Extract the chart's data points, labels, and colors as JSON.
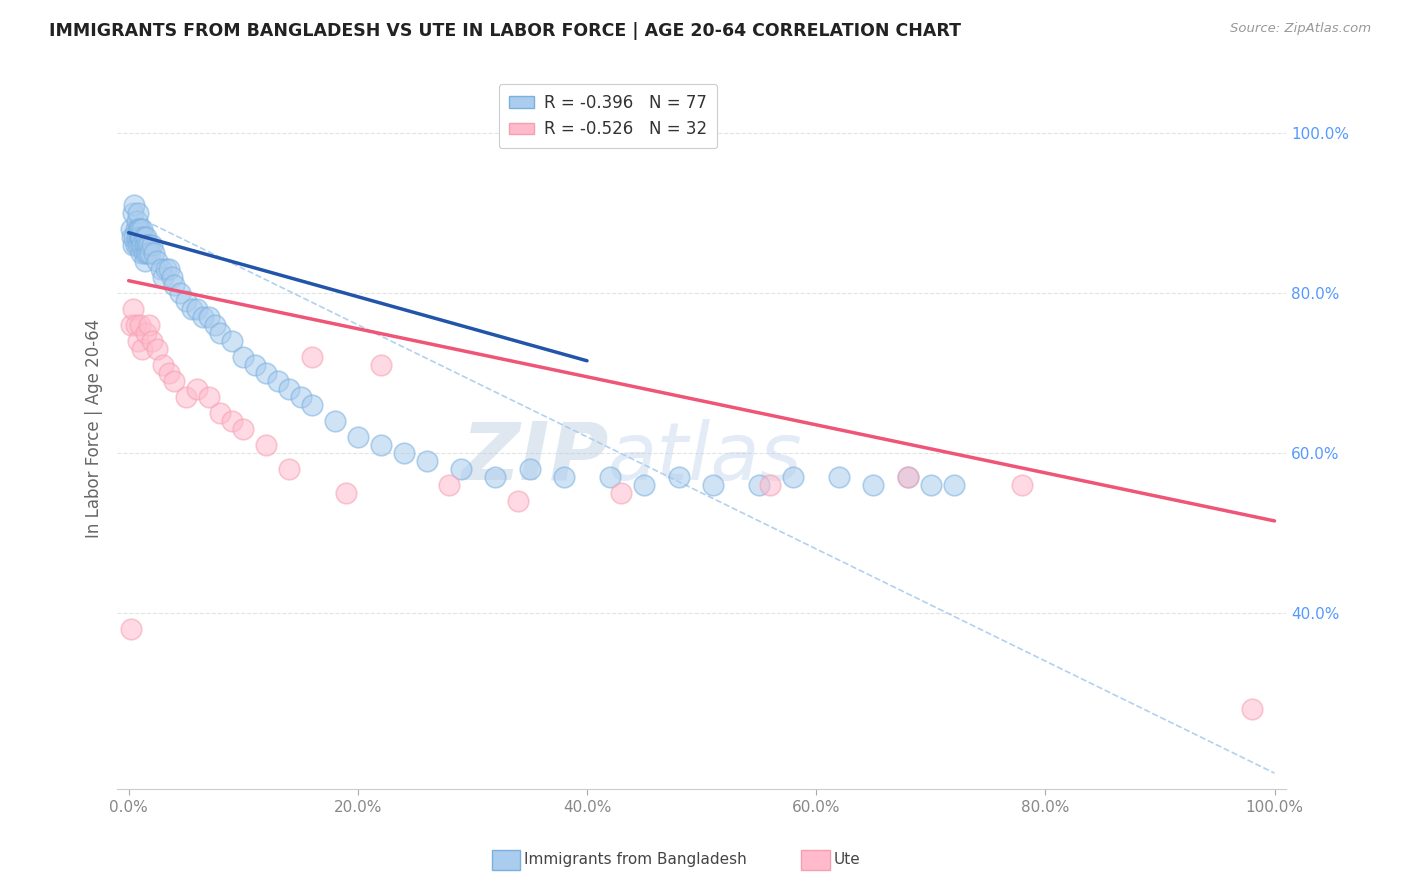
{
  "title": "IMMIGRANTS FROM BANGLADESH VS UTE IN LABOR FORCE | AGE 20-64 CORRELATION CHART",
  "source": "Source: ZipAtlas.com",
  "ylabel": "In Labor Force | Age 20-64",
  "xlim": [
    -0.01,
    1.01
  ],
  "ylim": [
    0.18,
    1.08
  ],
  "xtick_labels": [
    "0.0%",
    "20.0%",
    "40.0%",
    "60.0%",
    "80.0%",
    "100.0%"
  ],
  "xtick_vals": [
    0.0,
    0.2,
    0.4,
    0.6,
    0.8,
    1.0
  ],
  "ytick_labels": [
    "40.0%",
    "60.0%",
    "80.0%",
    "100.0%"
  ],
  "ytick_vals": [
    0.4,
    0.6,
    0.8,
    1.0
  ],
  "legend_label_blue": "R = -0.396   N = 77",
  "legend_label_pink": "R = -0.526   N = 32",
  "blue_scatter_x": [
    0.002,
    0.003,
    0.004,
    0.004,
    0.005,
    0.005,
    0.006,
    0.006,
    0.007,
    0.007,
    0.008,
    0.008,
    0.008,
    0.009,
    0.009,
    0.01,
    0.01,
    0.01,
    0.011,
    0.011,
    0.012,
    0.012,
    0.013,
    0.013,
    0.014,
    0.014,
    0.015,
    0.015,
    0.016,
    0.017,
    0.018,
    0.019,
    0.02,
    0.022,
    0.025,
    0.028,
    0.03,
    0.033,
    0.035,
    0.038,
    0.04,
    0.045,
    0.05,
    0.055,
    0.06,
    0.065,
    0.07,
    0.075,
    0.08,
    0.09,
    0.1,
    0.11,
    0.12,
    0.13,
    0.14,
    0.15,
    0.16,
    0.18,
    0.2,
    0.22,
    0.24,
    0.26,
    0.29,
    0.32,
    0.35,
    0.38,
    0.42,
    0.45,
    0.48,
    0.51,
    0.55,
    0.58,
    0.62,
    0.65,
    0.68,
    0.7,
    0.72
  ],
  "blue_scatter_y": [
    0.88,
    0.87,
    0.9,
    0.86,
    0.91,
    0.87,
    0.88,
    0.86,
    0.89,
    0.87,
    0.88,
    0.86,
    0.9,
    0.87,
    0.88,
    0.88,
    0.86,
    0.87,
    0.87,
    0.85,
    0.88,
    0.86,
    0.87,
    0.85,
    0.86,
    0.84,
    0.87,
    0.85,
    0.86,
    0.85,
    0.86,
    0.85,
    0.86,
    0.85,
    0.84,
    0.83,
    0.82,
    0.83,
    0.83,
    0.82,
    0.81,
    0.8,
    0.79,
    0.78,
    0.78,
    0.77,
    0.77,
    0.76,
    0.75,
    0.74,
    0.72,
    0.71,
    0.7,
    0.69,
    0.68,
    0.67,
    0.66,
    0.64,
    0.62,
    0.61,
    0.6,
    0.59,
    0.58,
    0.57,
    0.58,
    0.57,
    0.57,
    0.56,
    0.57,
    0.56,
    0.56,
    0.57,
    0.57,
    0.56,
    0.57,
    0.56,
    0.56
  ],
  "pink_scatter_x": [
    0.002,
    0.004,
    0.006,
    0.008,
    0.01,
    0.012,
    0.015,
    0.018,
    0.02,
    0.025,
    0.03,
    0.035,
    0.04,
    0.05,
    0.06,
    0.07,
    0.08,
    0.09,
    0.1,
    0.12,
    0.14,
    0.16,
    0.19,
    0.22,
    0.28,
    0.34,
    0.43,
    0.56,
    0.68,
    0.78,
    0.98,
    0.002
  ],
  "pink_scatter_y": [
    0.76,
    0.78,
    0.76,
    0.74,
    0.76,
    0.73,
    0.75,
    0.76,
    0.74,
    0.73,
    0.71,
    0.7,
    0.69,
    0.67,
    0.68,
    0.67,
    0.65,
    0.64,
    0.63,
    0.61,
    0.58,
    0.72,
    0.55,
    0.71,
    0.56,
    0.54,
    0.55,
    0.56,
    0.57,
    0.56,
    0.28,
    0.38
  ],
  "blue_line_x": [
    0.0,
    0.4
  ],
  "blue_line_y": [
    0.875,
    0.715
  ],
  "pink_line_x": [
    0.0,
    1.0
  ],
  "pink_line_y": [
    0.815,
    0.515
  ],
  "dashed_line_x": [
    0.0,
    1.0
  ],
  "dashed_line_y": [
    0.9,
    0.2
  ],
  "blue_color": "#7ab0e0",
  "pink_color": "#f5a0b0",
  "blue_fill_color": "#aaccee",
  "pink_fill_color": "#ffbbcc",
  "blue_line_color": "#2255aa",
  "pink_line_color": "#ee5577",
  "dashed_color": "#aaccee",
  "watermark_left": "ZIP",
  "watermark_right": "atlas",
  "background_color": "#ffffff",
  "grid_color": "#dddddd",
  "bottom_legend_blue": "Immigrants from Bangladesh",
  "bottom_legend_pink": "Ute"
}
